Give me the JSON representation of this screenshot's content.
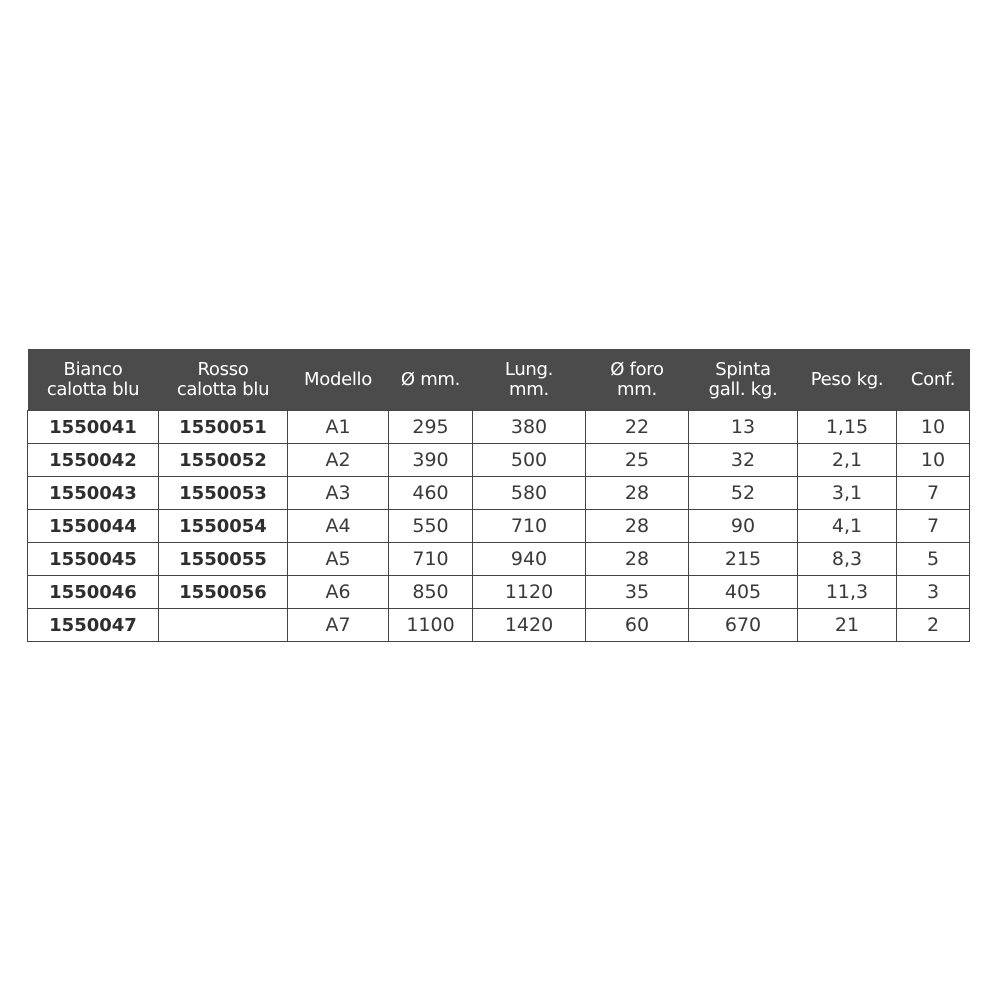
{
  "table": {
    "headers": [
      [
        "Bianco",
        "calotta blu"
      ],
      [
        "Rosso",
        "calotta blu"
      ],
      [
        "Modello"
      ],
      [
        "Ø mm."
      ],
      [
        "Lung.",
        "mm."
      ],
      [
        "Ø foro",
        "mm."
      ],
      [
        "Spinta",
        "gall. kg."
      ],
      [
        "Peso kg."
      ],
      [
        "Conf."
      ]
    ],
    "rows": [
      [
        "1550041",
        "1550051",
        "A1",
        "295",
        "380",
        "22",
        "13",
        "1,15",
        "10"
      ],
      [
        "1550042",
        "1550052",
        "A2",
        "390",
        "500",
        "25",
        "32",
        "2,1",
        "10"
      ],
      [
        "1550043",
        "1550053",
        "A3",
        "460",
        "580",
        "28",
        "52",
        "3,1",
        "7"
      ],
      [
        "1550044",
        "1550054",
        "A4",
        "550",
        "710",
        "28",
        "90",
        "4,1",
        "7"
      ],
      [
        "1550045",
        "1550055",
        "A5",
        "710",
        "940",
        "28",
        "215",
        "8,3",
        "5"
      ],
      [
        "1550046",
        "1550056",
        "A6",
        "850",
        "1120",
        "35",
        "405",
        "11,3",
        "3"
      ],
      [
        "1550047",
        "",
        "A7",
        "1100",
        "1420",
        "60",
        "670",
        "21",
        "2"
      ]
    ]
  },
  "colors": {
    "header_bg": "#4b4b4b",
    "header_text": "#ffffff",
    "border": "#444444"
  }
}
